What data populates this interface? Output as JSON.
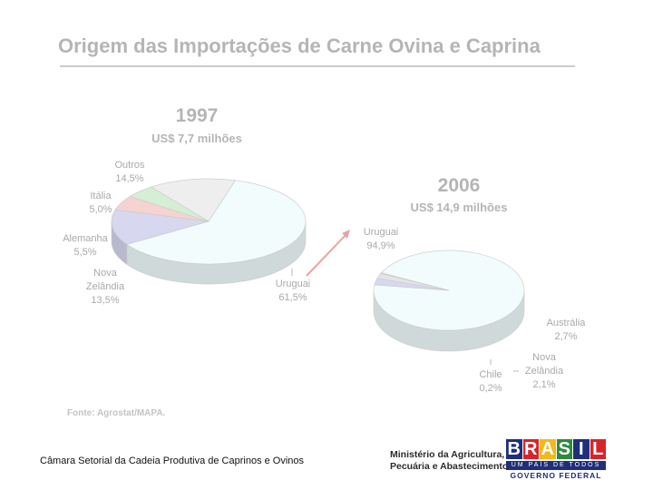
{
  "title": "Origem das Importações de Carne Ovina e Caprina",
  "chart_data": [
    {
      "type": "pie",
      "title": "1997",
      "subtitle": "US$ 7,7 milhões",
      "slices": [
        {
          "label": "Uruguai",
          "value_label": "61,5%",
          "value": 61.5,
          "color": "#f2fcfd"
        },
        {
          "label": "Nova Zelândia",
          "value_label": "13,5%",
          "value": 13.5,
          "color": "#d7d7ef"
        },
        {
          "label": "Alemanha",
          "value_label": "5,5%",
          "value": 5.5,
          "color": "#f5d3d3"
        },
        {
          "label": "Itália",
          "value_label": "5,0%",
          "value": 5.0,
          "color": "#d4efd4"
        },
        {
          "label": "Outros",
          "value_label": "14,5%",
          "value": 14.5,
          "color": "#eeeeee"
        }
      ]
    },
    {
      "type": "pie",
      "title": "2006",
      "subtitle": "US$ 14,9 milhões",
      "slices": [
        {
          "label": "Uruguai",
          "value_label": "94,9%",
          "value": 94.9,
          "color": "#f2fcfd"
        },
        {
          "label": "Austrália",
          "value_label": "2,7%",
          "value": 2.7,
          "color": "#d7d7ef"
        },
        {
          "label": "Nova Zelândia",
          "value_label": "2,1%",
          "value": 2.1,
          "color": "#e4e4e4"
        },
        {
          "label": "Chile",
          "value_label": "0,2%",
          "value": 0.2,
          "color": "#f5d3d3"
        }
      ]
    }
  ],
  "source": "Fonte: Agrostat/MAPA.",
  "footer": "Câmara Setorial da Cadeia Produtiva de Caprinos e Ovinos",
  "ministry": {
    "line1": "Ministério da Agricultura,",
    "line2": "Pecuária e Abastecimento"
  },
  "logo": {
    "letters": [
      "B",
      "R",
      "A",
      "S",
      "I",
      "L"
    ],
    "slogan": "UM PAÍS DE TODOS",
    "govt": "GOVERNO FEDERAL",
    "colors": [
      "#1f2f7a",
      "#d8232a",
      "#f3b81b",
      "#2e8b3d",
      "#1f2f7a",
      "#d8232a"
    ]
  },
  "colors": {
    "label": "#a9a9a9",
    "heading": "#b5b5b5",
    "arrow": "#e9a3a3",
    "pie_outline": "#c8c8c8",
    "side": "#d3d3d3"
  }
}
